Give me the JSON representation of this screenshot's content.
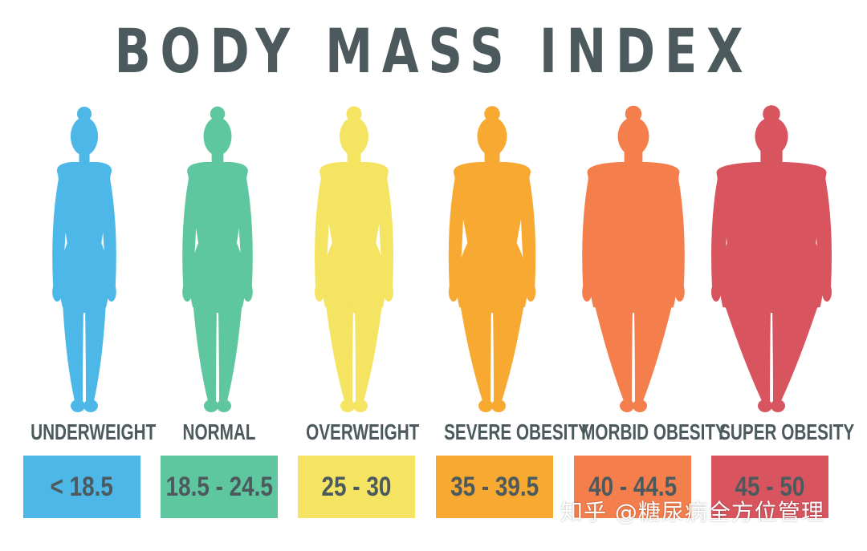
{
  "title": "BODY MASS INDEX",
  "categories": [
    {
      "label": "UNDERWEIGHT",
      "range": "< 18.5",
      "color": "#4db8e8"
    },
    {
      "label": "NORMAL",
      "range": "18.5 - 24.5",
      "color": "#5ec7a0"
    },
    {
      "label": "OVERWEIGHT",
      "range": "25 - 30",
      "color": "#f4e462"
    },
    {
      "label": "SEVERE OBESITY",
      "range": "35 - 39.5",
      "color": "#f7a932"
    },
    {
      "label": "MORBID OBESITY",
      "range": "40 - 44.5",
      "color": "#f47f4c"
    },
    {
      "label": "SUPER OBESITY",
      "range": "45 - 50",
      "color": "#d8555f"
    }
  ],
  "watermark": "知乎 @糖尿病全方位管理",
  "colors": {
    "text": "#4c5a5d"
  }
}
